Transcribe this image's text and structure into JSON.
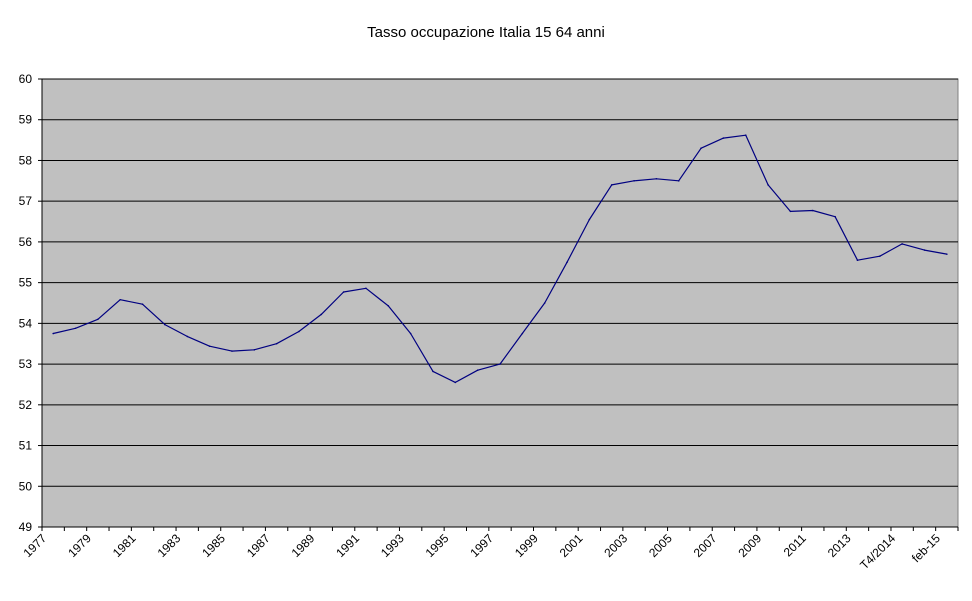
{
  "chart_data": {
    "type": "line",
    "title": "Tasso occupazione Italia 15 64 anni",
    "xlabel": "",
    "ylabel": "",
    "ylim": [
      49,
      60
    ],
    "yticks": [
      49,
      50,
      51,
      52,
      53,
      54,
      55,
      56,
      57,
      58,
      59,
      60
    ],
    "grid": true,
    "legend": "none",
    "categories": [
      "1977",
      "",
      "1979",
      "",
      "1981",
      "",
      "1983",
      "",
      "1985",
      "",
      "1987",
      "",
      "1989",
      "",
      "1991",
      "",
      "1993",
      "",
      "1995",
      "",
      "1997",
      "",
      "1999",
      "",
      "2001",
      "",
      "2003",
      "",
      "2005",
      "",
      "2007",
      "",
      "2009",
      "",
      "2011",
      "",
      "2013",
      "",
      "T4/2014",
      "",
      "feb-15"
    ],
    "series": [
      {
        "name": "Tasso occupazione",
        "color": "#000080",
        "values": [
          53.75,
          53.88,
          54.1,
          54.58,
          54.47,
          53.97,
          53.68,
          53.44,
          53.32,
          53.35,
          53.5,
          53.8,
          54.22,
          54.77,
          54.86,
          54.43,
          53.75,
          52.82,
          52.55,
          52.85,
          53.0,
          53.75,
          54.5,
          55.5,
          56.55,
          57.4,
          57.5,
          57.55,
          57.5,
          58.3,
          58.55,
          58.62,
          57.4,
          56.75,
          56.77,
          56.62,
          55.55,
          55.65,
          55.95,
          55.8,
          55.7
        ]
      }
    ],
    "plot_background": "#c0c0c0"
  }
}
